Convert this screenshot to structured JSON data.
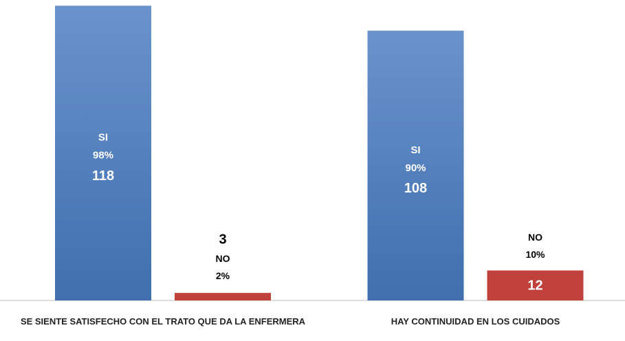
{
  "chart_data": {
    "type": "bar",
    "categories": [
      "SE SIENTE SATISFECHO CON EL TRATO QUE DA LA ENFERMERA",
      "HAY CONTINUIDAD EN LOS CUIDADOS"
    ],
    "series": [
      {
        "name": "SI",
        "color": "#4a7dbf",
        "values": [
          118,
          108
        ],
        "percent_labels": [
          "98%",
          "90%"
        ]
      },
      {
        "name": "NO",
        "color": "#c0413c",
        "values": [
          3,
          12
        ],
        "percent_labels": [
          "2%",
          "10%"
        ]
      }
    ],
    "ylim": [
      0,
      120
    ]
  }
}
